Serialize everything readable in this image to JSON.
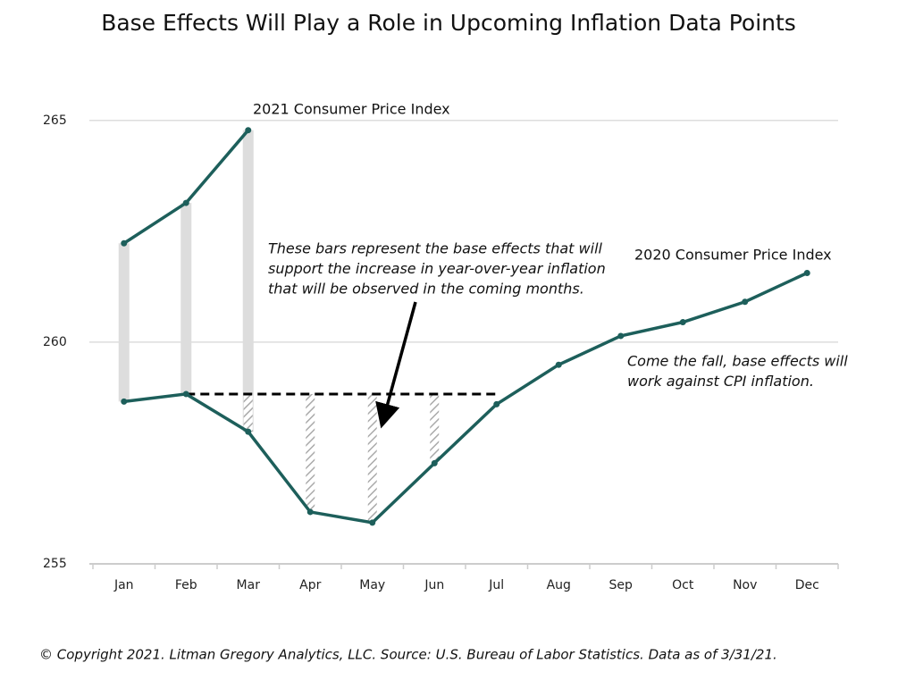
{
  "chart_data": {
    "type": "line",
    "title": "Base Effects Will Play a Role in Upcoming Inflation Data Points",
    "categories": [
      "Jan",
      "Feb",
      "Mar",
      "Apr",
      "May",
      "Jun",
      "Jul",
      "Aug",
      "Sep",
      "Oct",
      "Nov",
      "Dec"
    ],
    "series": [
      {
        "name": "2020 Consumer Price Index",
        "color": "#1d5f5b",
        "values": [
          258.66,
          258.83,
          257.98,
          256.17,
          255.93,
          257.27,
          258.6,
          259.49,
          260.14,
          260.45,
          260.91,
          261.56
        ]
      },
      {
        "name": "2021 Consumer Price Index",
        "color": "#1d5f5b",
        "values": [
          262.23,
          263.14,
          264.78,
          null,
          null,
          null,
          null,
          null,
          null,
          null,
          null,
          null
        ]
      }
    ],
    "reference_line": {
      "value": 258.83,
      "from": "Feb",
      "to": "Jul"
    },
    "ylim": [
      255,
      265.6
    ],
    "yticks": [
      255,
      260,
      265
    ],
    "grid": true,
    "annotations": [
      {
        "lines": [
          "These bars represent the base effects that will",
          "support the increase in year-over-year inflation",
          "that will be observed in the coming months."
        ]
      },
      {
        "lines": [
          "Come the fall, base effects will",
          "work against CPI inflation."
        ]
      }
    ],
    "footer": "© Copyright 2021. Litman Gregory Analytics, LLC. Source: U.S. Bureau of Labor Statistics. Data as of 3/31/21."
  }
}
